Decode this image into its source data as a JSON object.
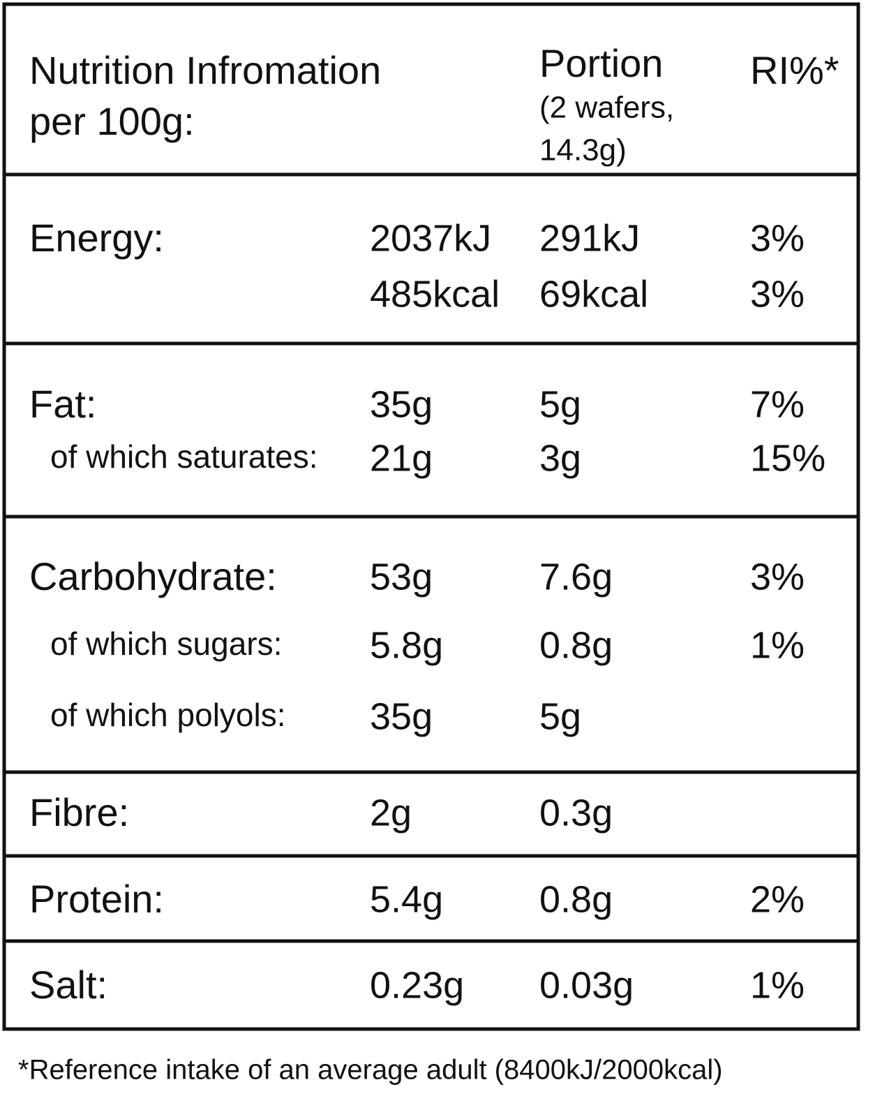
{
  "header": {
    "title": [
      "Nutrition Infromation",
      "per 100g:"
    ],
    "portion": "Portion",
    "portion_note": [
      "(2 wafers,",
      "14.3g)"
    ],
    "ri": "RI%*"
  },
  "sections": [
    {
      "rows": [
        {
          "label": "Energy:",
          "per_100g": "2037kJ",
          "portion": "291kJ",
          "ri": "3%"
        },
        {
          "per_100g": "485kcal",
          "portion": "69kcal",
          "ri": "3%"
        }
      ]
    },
    {
      "rows": [
        {
          "label": "Fat:",
          "per_100g": "35g",
          "portion": "5g",
          "ri": "7%"
        },
        {
          "label": "of which saturates:",
          "per_100g": "21g",
          "portion": "3g",
          "ri": "15%"
        }
      ]
    },
    {
      "rows": [
        {
          "label": "Carbohydrate:",
          "per_100g": "53g",
          "portion": "7.6g",
          "ri": "3%"
        },
        {
          "label": "of which sugars:",
          "per_100g": "5.8g",
          "portion": "0.8g",
          "ri": "1%"
        },
        {
          "label": "of which polyols:",
          "per_100g": "35g",
          "portion": "5g"
        }
      ]
    },
    {
      "rows": [
        {
          "label": "Fibre:",
          "per_100g": "2g",
          "portion": "0.3g"
        }
      ]
    },
    {
      "rows": [
        {
          "label": "Protein:",
          "per_100g": "5.4g",
          "portion": "0.8g",
          "ri": "2%"
        }
      ]
    },
    {
      "rows": [
        {
          "label": "Salt:",
          "per_100g": "0.23g",
          "portion": "0.03g",
          "ri": "1%"
        }
      ]
    }
  ],
  "footnote": "*Reference intake of an average adult (8400kJ/2000kcal)"
}
